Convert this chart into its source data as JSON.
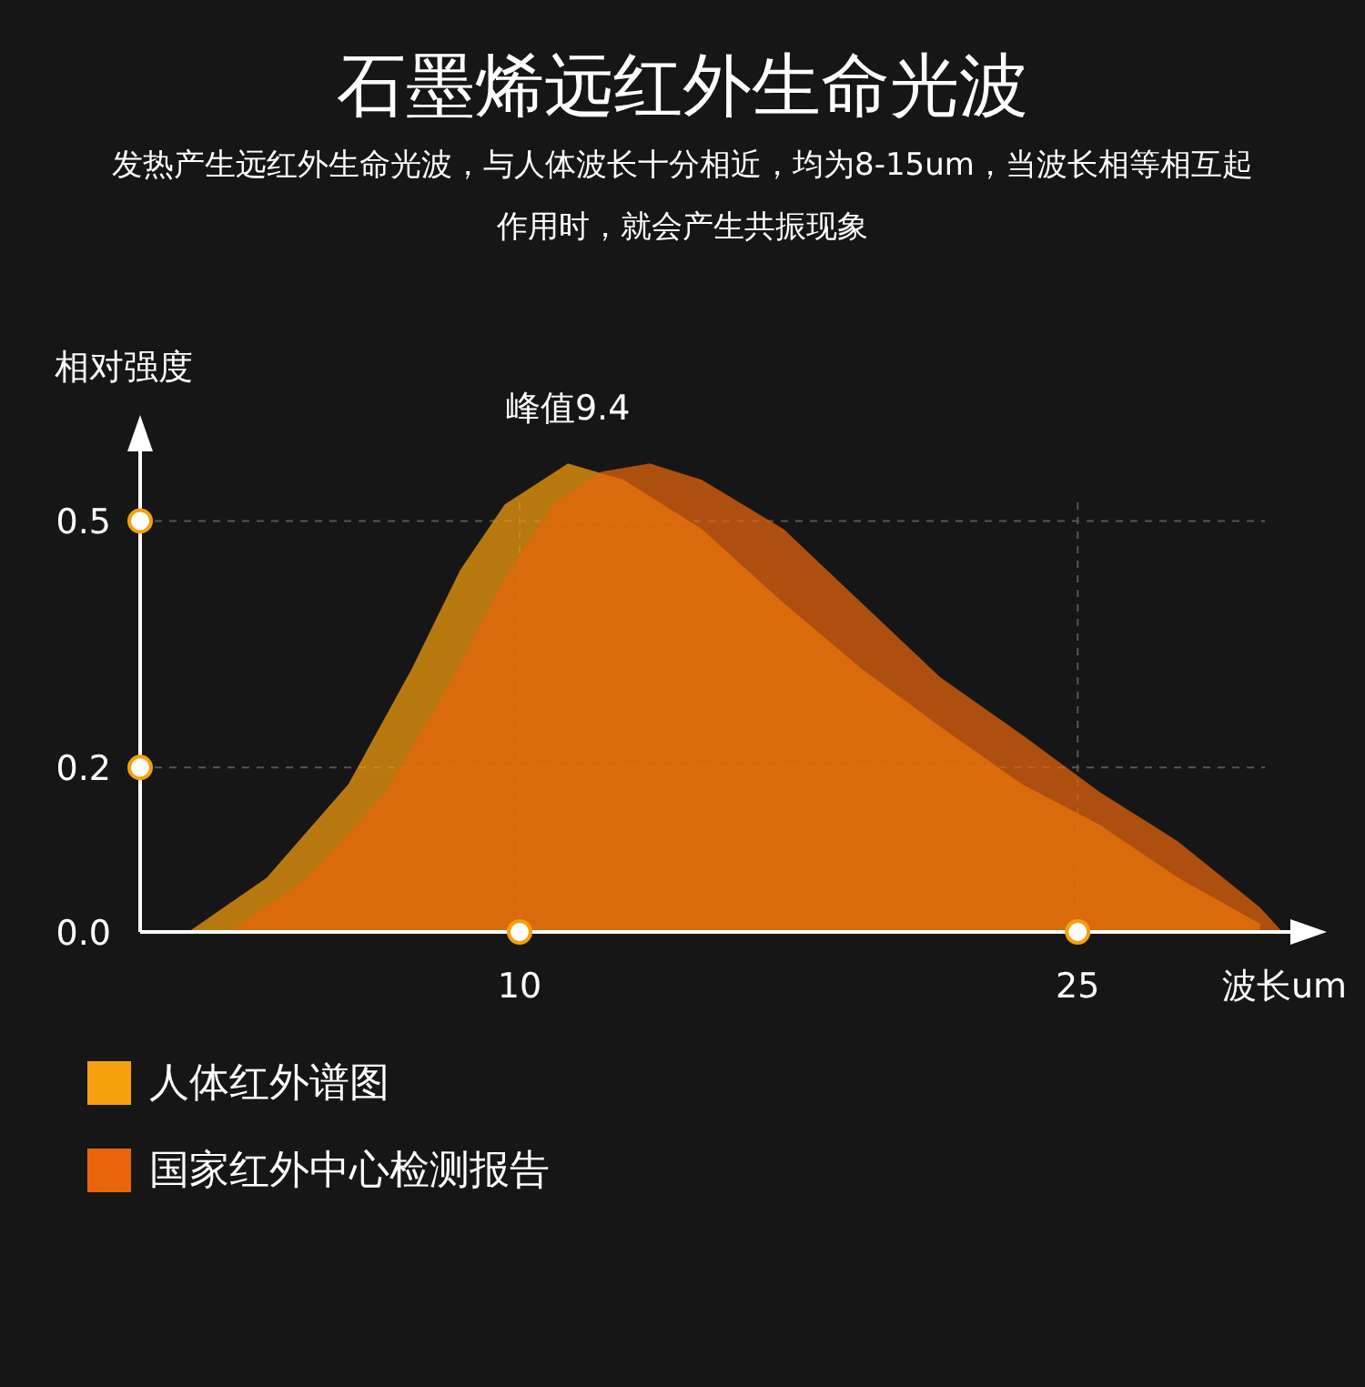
{
  "chart_data": {
    "type": "area",
    "title": "石墨烯远红外生命光波",
    "subtitle": "发热产生远红外生命光波，与人体波长十分相近，均为8-15um，当波长相等相互起作用时，就会产生共振现象",
    "xlabel": "波长um",
    "ylabel": "相对强度",
    "annotations": [
      {
        "text": "峰值9.4",
        "x": 11.3,
        "y": 0.57
      }
    ],
    "xlim": [
      -0.2,
      31.5
    ],
    "ylim": [
      0,
      0.62
    ],
    "xticks": [
      10,
      25
    ],
    "yticks": [
      {
        "value": 0,
        "label": "0.0"
      },
      0.2,
      0.5
    ],
    "grid": true,
    "legend": "bottom",
    "series": [
      {
        "name": "人体红外谱图",
        "color": "#f5a00c",
        "x": [
          1.1,
          3.2,
          5.4,
          7.1,
          8.4,
          9.6,
          11.3,
          12.8,
          14.9,
          17.1,
          19.2,
          21.3,
          23.5,
          25.6,
          27.7,
          29.9
        ],
        "values": [
          0,
          0.066,
          0.18,
          0.32,
          0.44,
          0.52,
          0.57,
          0.55,
          0.49,
          0.4,
          0.32,
          0.25,
          0.18,
          0.13,
          0.066,
          0.01
        ]
      },
      {
        "name": "国家红外中心检测报告",
        "color": "#e8650c",
        "x": [
          2.2,
          4.3,
          6.4,
          8.1,
          9.6,
          10.9,
          12.2,
          13.5,
          14.9,
          17.1,
          19.2,
          21.3,
          23.5,
          25.6,
          27.7,
          29.9,
          30.5
        ],
        "values": [
          0,
          0.066,
          0.17,
          0.3,
          0.43,
          0.52,
          0.56,
          0.57,
          0.55,
          0.49,
          0.4,
          0.31,
          0.24,
          0.17,
          0.11,
          0.03,
          0
        ]
      }
    ]
  }
}
